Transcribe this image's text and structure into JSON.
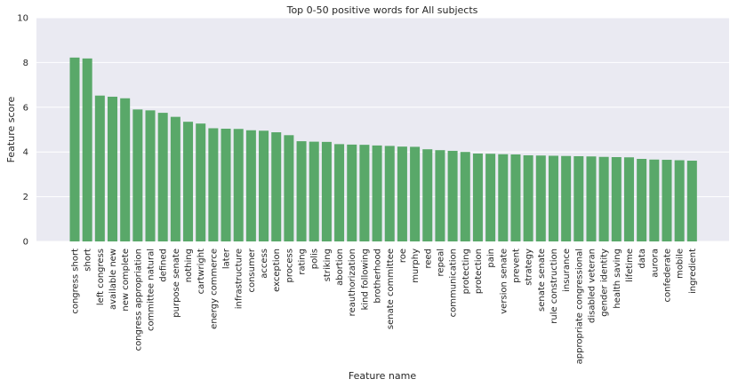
{
  "chart_data": {
    "type": "bar",
    "title": "Top 0-50 positive words for All subjects",
    "xlabel": "Feature name",
    "ylabel": "Feature score",
    "ylim": [
      0,
      10
    ],
    "yticks": [
      0,
      2,
      4,
      6,
      8,
      10
    ],
    "grid": true,
    "colors": {
      "bar": "#59a869",
      "background": "#eaeaf2",
      "grid": "#ffffff"
    },
    "categories": [
      "congress short",
      "short",
      "left congress",
      "available new",
      "new complete",
      "congress appropriation",
      "committee natural",
      "defined",
      "purpose senate",
      "nothing",
      "cartwright",
      "energy commerce",
      "later",
      "infrastructure",
      "consumer",
      "access",
      "exception",
      "process",
      "rating",
      "polis",
      "striking",
      "abortion",
      "reauthorization",
      "kind following",
      "brotherhood",
      "senate committee",
      "roe",
      "murphy",
      "reed",
      "repeal",
      "communication",
      "protecting",
      "protection",
      "pain",
      "version senate",
      "prevent",
      "strategy",
      "senate senate",
      "rule construction",
      "insurance",
      "appropriate congressional",
      "disabled veteran",
      "gender identity",
      "health saving",
      "lifetime",
      "data",
      "aurora",
      "confederate",
      "mobile",
      "ingredient"
    ],
    "values": [
      8.22,
      8.18,
      6.52,
      6.47,
      6.4,
      5.9,
      5.86,
      5.75,
      5.57,
      5.35,
      5.27,
      5.06,
      5.04,
      5.03,
      4.97,
      4.95,
      4.88,
      4.75,
      4.48,
      4.46,
      4.45,
      4.35,
      4.33,
      4.32,
      4.29,
      4.27,
      4.24,
      4.23,
      4.12,
      4.08,
      4.05,
      4.0,
      3.93,
      3.92,
      3.9,
      3.89,
      3.85,
      3.84,
      3.83,
      3.82,
      3.81,
      3.8,
      3.78,
      3.77,
      3.76,
      3.69,
      3.66,
      3.65,
      3.63,
      3.61
    ]
  }
}
